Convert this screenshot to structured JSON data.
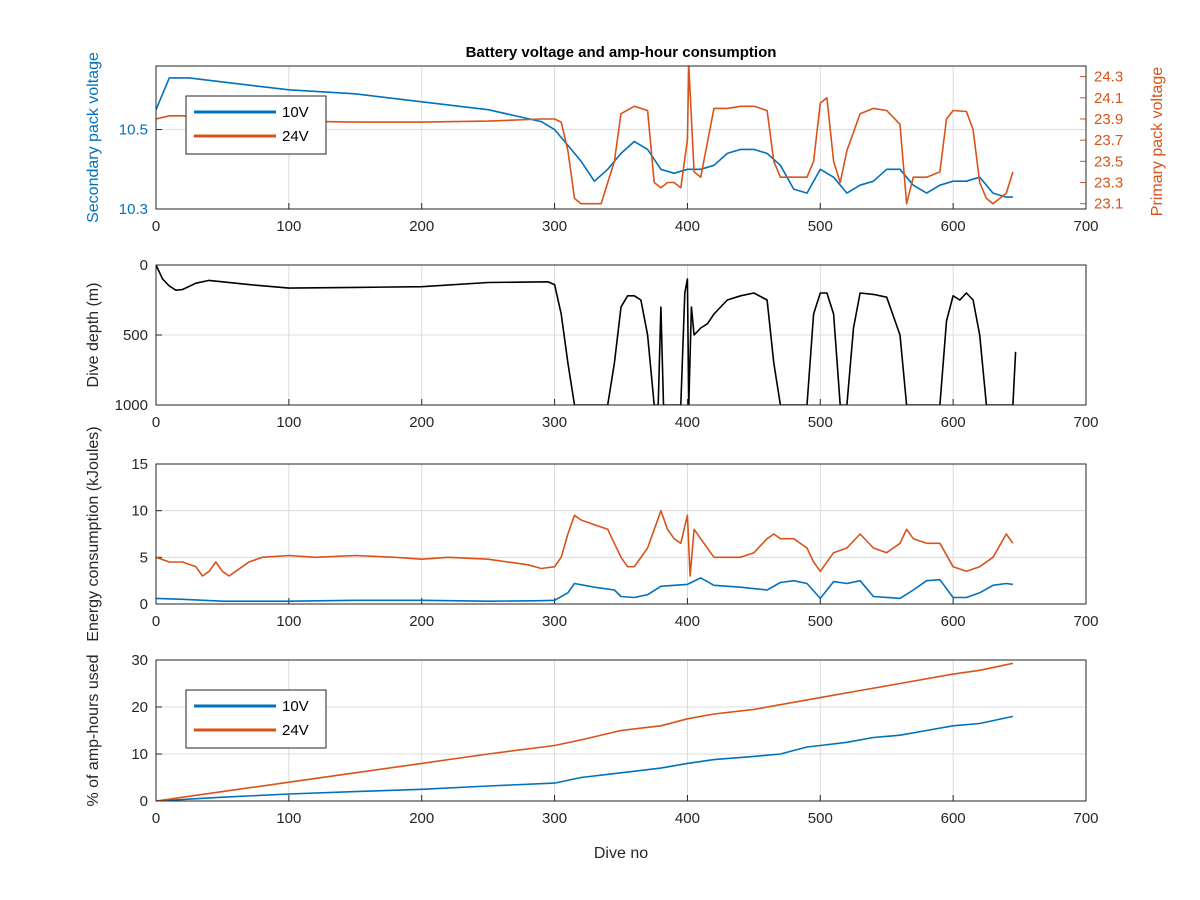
{
  "figure": {
    "title": "Battery voltage and amp-hour consumption"
  },
  "colors": {
    "series_10v": "#0072BD",
    "series_24v": "#D95319",
    "depth": "#000000",
    "grid": "#dcdcdc",
    "axis": "#262626"
  },
  "chart_data": [
    {
      "type": "line",
      "id": "voltage",
      "title": "Battery voltage and amp-hour consumption",
      "xlabel": "",
      "ylabel": "Secondary pack voltage",
      "y2label": "Primary pack voltage",
      "xlim": [
        0,
        700
      ],
      "ylim": [
        10.3,
        10.66
      ],
      "y2lim": [
        23.05,
        24.4
      ],
      "x_ticks": [
        "0",
        "100",
        "200",
        "300",
        "400",
        "500",
        "600",
        "700"
      ],
      "y_ticks": [
        "10.3",
        "10.5"
      ],
      "y2_ticks": [
        "23.1",
        "23.3",
        "23.5",
        "23.7",
        "23.9",
        "24.1",
        "24.3"
      ],
      "grid": true,
      "legend": {
        "placement": "top-left",
        "entries": [
          "10V",
          "24V"
        ]
      },
      "series": [
        {
          "name": "10V",
          "axis": "left",
          "x": [
            0,
            10,
            25,
            50,
            75,
            100,
            150,
            200,
            250,
            290,
            300,
            310,
            320,
            330,
            340,
            350,
            360,
            370,
            380,
            390,
            400,
            410,
            420,
            430,
            440,
            450,
            460,
            470,
            480,
            490,
            500,
            510,
            520,
            530,
            540,
            550,
            560,
            570,
            580,
            590,
            600,
            610,
            620,
            630,
            640,
            645
          ],
          "y": [
            10.55,
            10.63,
            10.63,
            10.62,
            10.61,
            10.6,
            10.59,
            10.57,
            10.55,
            10.52,
            10.5,
            10.46,
            10.42,
            10.37,
            10.4,
            10.44,
            10.47,
            10.45,
            10.4,
            10.39,
            10.4,
            10.4,
            10.41,
            10.44,
            10.45,
            10.45,
            10.44,
            10.41,
            10.35,
            10.34,
            10.4,
            10.38,
            10.34,
            10.36,
            10.37,
            10.4,
            10.4,
            10.36,
            10.34,
            10.36,
            10.37,
            10.37,
            10.38,
            10.34,
            10.33,
            10.33
          ]
        },
        {
          "name": "24V",
          "axis": "right",
          "x": [
            0,
            10,
            20,
            50,
            100,
            150,
            200,
            250,
            290,
            300,
            305,
            310,
            315,
            320,
            335,
            345,
            350,
            360,
            370,
            375,
            380,
            385,
            390,
            395,
            400,
            401,
            405,
            410,
            420,
            430,
            440,
            450,
            460,
            465,
            470,
            480,
            490,
            495,
            500,
            505,
            510,
            515,
            520,
            530,
            540,
            550,
            560,
            565,
            570,
            580,
            590,
            595,
            600,
            610,
            615,
            620,
            625,
            630,
            640,
            645
          ],
          "y": [
            23.9,
            23.93,
            23.93,
            23.9,
            23.88,
            23.87,
            23.87,
            23.88,
            23.9,
            23.9,
            23.87,
            23.6,
            23.15,
            23.1,
            23.1,
            23.5,
            23.95,
            24.02,
            23.98,
            23.3,
            23.25,
            23.3,
            23.3,
            23.25,
            23.7,
            24.4,
            23.4,
            23.35,
            24.0,
            24.0,
            24.02,
            24.02,
            23.98,
            23.5,
            23.35,
            23.35,
            23.35,
            23.5,
            24.05,
            24.1,
            23.5,
            23.3,
            23.6,
            23.95,
            24.0,
            23.98,
            23.85,
            23.1,
            23.35,
            23.35,
            23.4,
            23.9,
            23.98,
            23.97,
            23.8,
            23.3,
            23.15,
            23.1,
            23.2,
            23.4
          ]
        }
      ]
    },
    {
      "type": "line",
      "id": "depth",
      "xlabel": "",
      "ylabel": "Dive depth (m)",
      "xlim": [
        0,
        700
      ],
      "ylim": [
        1000,
        0
      ],
      "y_reversed": true,
      "x_ticks": [
        "0",
        "100",
        "200",
        "300",
        "400",
        "500",
        "600",
        "700"
      ],
      "y_ticks": [
        "0",
        "500",
        "1000"
      ],
      "grid": true,
      "series": [
        {
          "name": "",
          "x": [
            0,
            5,
            10,
            15,
            20,
            30,
            40,
            50,
            70,
            100,
            150,
            200,
            250,
            295,
            300,
            305,
            310,
            315,
            320,
            330,
            340,
            345,
            350,
            355,
            360,
            365,
            370,
            375,
            378,
            380,
            382,
            383,
            385,
            395,
            398,
            400,
            401,
            403,
            405,
            410,
            415,
            420,
            430,
            440,
            450,
            460,
            465,
            470,
            480,
            485,
            490,
            495,
            500,
            505,
            510,
            515,
            520,
            525,
            530,
            540,
            550,
            560,
            565,
            570,
            580,
            590,
            595,
            600,
            605,
            610,
            615,
            620,
            625,
            630,
            640,
            645,
            647
          ],
          "y": [
            0,
            100,
            150,
            180,
            175,
            130,
            110,
            120,
            140,
            165,
            160,
            155,
            125,
            120,
            140,
            350,
            700,
            1000,
            1000,
            1000,
            1000,
            700,
            300,
            220,
            220,
            250,
            500,
            1000,
            1000,
            300,
            1000,
            1000,
            1000,
            1000,
            200,
            100,
            1000,
            300,
            500,
            450,
            420,
            350,
            250,
            220,
            200,
            250,
            700,
            1000,
            1000,
            1000,
            1000,
            350,
            200,
            200,
            350,
            1000,
            1000,
            450,
            200,
            210,
            230,
            500,
            1000,
            1000,
            1000,
            1000,
            400,
            220,
            250,
            200,
            250,
            500,
            1000,
            1000,
            1000,
            1000,
            620
          ]
        }
      ]
    },
    {
      "type": "line",
      "id": "energy",
      "xlabel": "",
      "ylabel": "Energy consumption (kJoules)",
      "xlim": [
        0,
        700
      ],
      "ylim": [
        0,
        15
      ],
      "x_ticks": [
        "0",
        "100",
        "200",
        "300",
        "400",
        "500",
        "600",
        "700"
      ],
      "y_ticks": [
        "0",
        "5",
        "10",
        "15"
      ],
      "grid": true,
      "series": [
        {
          "name": "10V",
          "x": [
            0,
            20,
            50,
            100,
            150,
            200,
            250,
            290,
            300,
            310,
            315,
            330,
            345,
            350,
            360,
            370,
            380,
            390,
            400,
            410,
            420,
            440,
            460,
            470,
            480,
            490,
            500,
            510,
            520,
            530,
            540,
            560,
            570,
            580,
            590,
            600,
            610,
            620,
            630,
            640,
            645
          ],
          "y": [
            0.6,
            0.5,
            0.3,
            0.3,
            0.4,
            0.4,
            0.3,
            0.35,
            0.4,
            1.2,
            2.2,
            1.8,
            1.5,
            0.8,
            0.7,
            1.0,
            1.9,
            2.0,
            2.1,
            2.8,
            2.0,
            1.8,
            1.5,
            2.3,
            2.5,
            2.2,
            0.6,
            2.4,
            2.2,
            2.5,
            0.8,
            0.6,
            1.5,
            2.5,
            2.6,
            0.7,
            0.7,
            1.2,
            2.0,
            2.2,
            2.1
          ]
        },
        {
          "name": "24V",
          "x": [
            0,
            10,
            20,
            30,
            35,
            40,
            45,
            50,
            55,
            60,
            70,
            80,
            100,
            120,
            150,
            180,
            200,
            220,
            250,
            280,
            290,
            300,
            305,
            310,
            315,
            320,
            330,
            340,
            350,
            355,
            360,
            370,
            380,
            385,
            390,
            395,
            400,
            402,
            405,
            410,
            420,
            430,
            440,
            450,
            460,
            465,
            470,
            480,
            490,
            495,
            500,
            510,
            520,
            530,
            540,
            550,
            560,
            565,
            570,
            580,
            590,
            600,
            610,
            620,
            630,
            640,
            645
          ],
          "y": [
            5.0,
            4.5,
            4.5,
            4.0,
            3.0,
            3.5,
            4.5,
            3.5,
            3.0,
            3.5,
            4.5,
            5.0,
            5.2,
            5.0,
            5.2,
            5.0,
            4.8,
            5.0,
            4.8,
            4.2,
            3.8,
            4.0,
            5.0,
            7.5,
            9.5,
            9.0,
            8.5,
            8.0,
            5.0,
            4.0,
            4.0,
            6.0,
            10.0,
            8.0,
            7.0,
            6.5,
            9.5,
            3.0,
            8.0,
            7.0,
            5.0,
            5.0,
            5.0,
            5.5,
            7.0,
            7.5,
            7.0,
            7.0,
            6.0,
            4.5,
            3.5,
            5.5,
            6.0,
            7.5,
            6.0,
            5.5,
            6.5,
            8.0,
            7.0,
            6.5,
            6.5,
            4.0,
            3.5,
            4.0,
            5.0,
            7.5,
            6.5
          ]
        }
      ]
    },
    {
      "type": "line",
      "id": "amphours",
      "xlabel": "Dive no",
      "ylabel": "% of amp-hours used",
      "xlim": [
        0,
        700
      ],
      "ylim": [
        0,
        30
      ],
      "x_ticks": [
        "0",
        "100",
        "200",
        "300",
        "400",
        "500",
        "600",
        "700"
      ],
      "y_ticks": [
        "0",
        "10",
        "20",
        "30"
      ],
      "grid": true,
      "legend": {
        "placement": "top-left",
        "entries": [
          "10V",
          "24V"
        ]
      },
      "series": [
        {
          "name": "10V",
          "x": [
            0,
            50,
            100,
            150,
            200,
            250,
            300,
            320,
            350,
            380,
            400,
            420,
            450,
            470,
            490,
            500,
            520,
            540,
            560,
            580,
            600,
            620,
            645
          ],
          "y": [
            0,
            0.8,
            1.5,
            2.0,
            2.5,
            3.2,
            3.8,
            5.0,
            6.0,
            7.0,
            8.0,
            8.8,
            9.5,
            10.0,
            11.5,
            11.8,
            12.5,
            13.5,
            14.0,
            15.0,
            16.0,
            16.5,
            18.0
          ]
        },
        {
          "name": "24V",
          "x": [
            0,
            50,
            100,
            150,
            200,
            250,
            300,
            320,
            350,
            380,
            400,
            420,
            450,
            480,
            500,
            530,
            560,
            600,
            620,
            645
          ],
          "y": [
            0,
            2.0,
            4.0,
            6.0,
            8.0,
            10.0,
            11.8,
            13.0,
            15.0,
            16.0,
            17.5,
            18.5,
            19.5,
            21.0,
            22.0,
            23.5,
            25.0,
            27.0,
            27.8,
            29.3
          ]
        }
      ]
    }
  ]
}
